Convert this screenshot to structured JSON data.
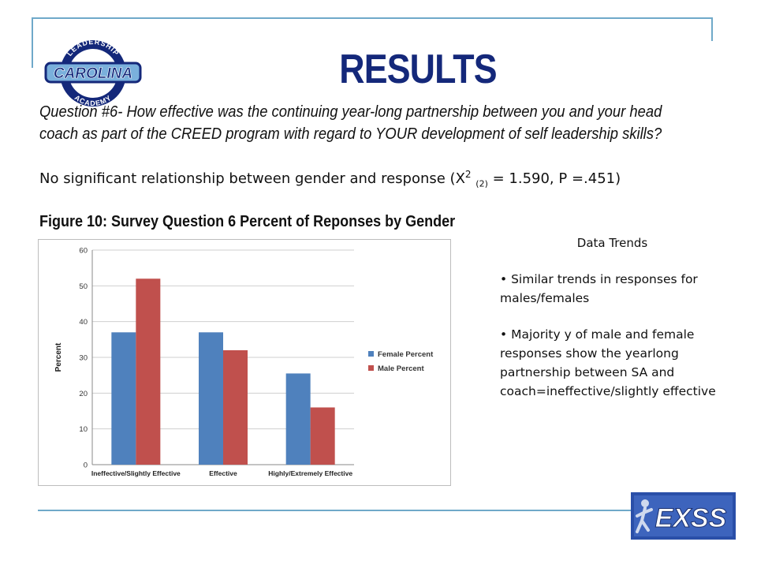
{
  "slide": {
    "title": "RESULTS",
    "question": "Question #6- How effective was the continuing year-long partnership between you and your head coach as part of the CREED program with regard to YOUR development of self leadership skills?",
    "stat": {
      "prefix": "No significant relationship between gender and response (X",
      "sup": "2",
      "sub": "(2)",
      "suffix": " = 1.590, P =.451)"
    },
    "figure_caption": "Figure 10: Survey Question 6 Percent of Reponses by Gender",
    "logo": {
      "top_text": "LEADERSHIP",
      "main_text": "CAROLINA",
      "bottom_text": "ACADEMY",
      "colors": {
        "navy": "#14287a",
        "carolina_blue": "#7ab0dc"
      }
    },
    "exss_logo": {
      "text": "EXSS",
      "background": "#2a4fa8"
    }
  },
  "data_trends": {
    "title": "Data Trends",
    "items": [
      "• Similar trends in responses for males/females",
      "• Majority y of male and female responses show the yearlong partnership between SA and coach=ineffective/slightly effective"
    ]
  },
  "chart_data": {
    "type": "bar",
    "categories": [
      "Ineffective/Slightly Effective",
      "Effective",
      "Highly/Extremely Effective"
    ],
    "series": [
      {
        "name": "Female Percent",
        "values": [
          37,
          37,
          25.5
        ],
        "color": "#4f81bd"
      },
      {
        "name": "Male Percent",
        "values": [
          52,
          32,
          16
        ],
        "color": "#c0504d"
      }
    ],
    "ylabel": "Percent",
    "ylim": [
      0,
      60
    ],
    "yticks": [
      "0",
      "10",
      "20",
      "30",
      "40",
      "50",
      "60"
    ],
    "grid": true,
    "legend_position": "right"
  }
}
